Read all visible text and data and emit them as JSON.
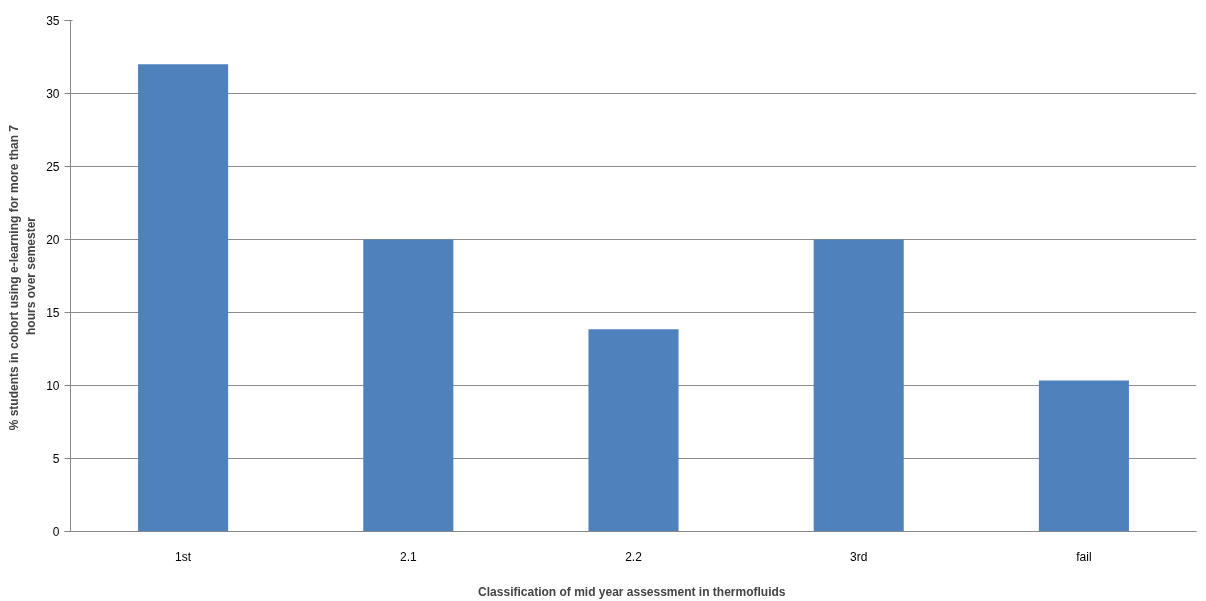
{
  "chart_data": {
    "type": "bar",
    "xlabel": "Classification  of mid year assessment in thermofluids",
    "ylabel": "% students in cohort  using e-learning for more than 7 hours over semester",
    "categories": [
      "1st",
      "2.1",
      "2.2",
      "3rd",
      "fail"
    ],
    "values": [
      32,
      20,
      13.85,
      20,
      10.35
    ],
    "color": "#4f81bd",
    "ylim": [
      0,
      35
    ],
    "yticks": [
      0,
      5,
      10,
      15,
      20,
      25,
      30,
      35
    ],
    "grid": "y"
  }
}
